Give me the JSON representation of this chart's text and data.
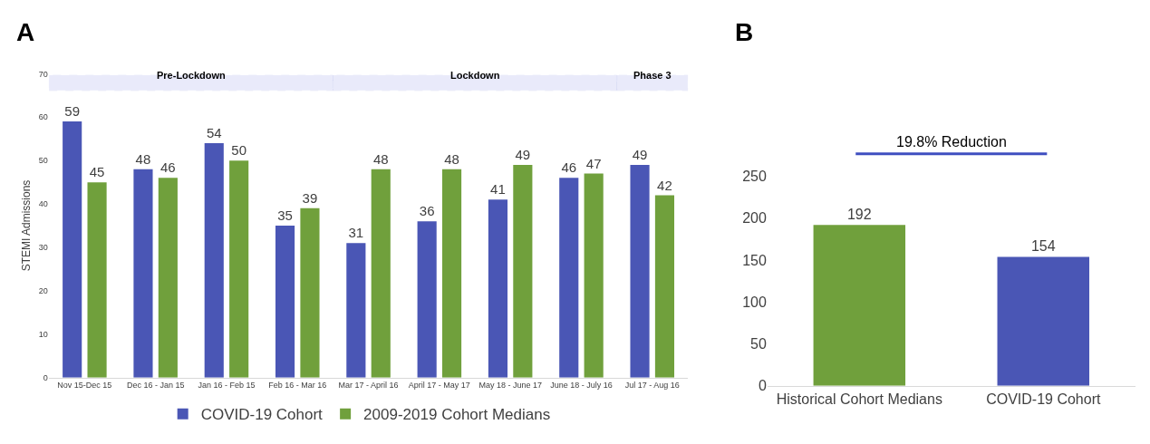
{
  "chart_data": [
    {
      "type": "bar",
      "title": "A",
      "ylabel": "STEMI Admissions",
      "categories": [
        "Nov 15-Dec 15",
        "Dec 16 - Jan 15",
        "Jan 16 - Feb 15",
        "Feb 16 - Mar 16",
        "Mar 17 - April 16",
        "April 17 - May 17",
        "May 18 - June 17",
        "June 18 - July 16",
        "Jul 17 - Aug 16"
      ],
      "series": [
        {
          "name": "COVID-19 Cohort",
          "color": "#4a56b5",
          "values": [
            59,
            48,
            54,
            35,
            31,
            36,
            41,
            46,
            49
          ]
        },
        {
          "name": "2009-2019 Cohort Medians",
          "color": "#70a03c",
          "values": [
            45,
            46,
            50,
            39,
            48,
            48,
            49,
            47,
            42
          ]
        }
      ],
      "ylim": [
        0,
        70
      ],
      "yticks": [
        0,
        10,
        20,
        30,
        40,
        50,
        60,
        70
      ],
      "bands": [
        {
          "axis": "x",
          "from": "Nov 15-Dec 15",
          "to": "Feb 16 - Mar 16",
          "label": "Pre-Lockdown",
          "color": "#4a56d0"
        },
        {
          "axis": "x",
          "from": "Mar 17 - April 16",
          "to": "June 18 - July 16",
          "label": "Lockdown",
          "color": "#4a56d0"
        },
        {
          "axis": "x",
          "from": "Jul 17 - Aug 16",
          "to": "Jul 17 - Aug 16",
          "label": "Phase 3",
          "color": "#4a56d0"
        }
      ],
      "data_labels": true,
      "legend": "bottom"
    },
    {
      "type": "bar",
      "title": "B",
      "categories": [
        "Historical Cohort Medians",
        "COVID-19 Cohort"
      ],
      "values": [
        192,
        154
      ],
      "colors": [
        "#70a03c",
        "#4a56b5"
      ],
      "ylim": [
        0,
        250
      ],
      "yticks": [
        0,
        50,
        100,
        150,
        200,
        250
      ],
      "annotations": [
        "19.8% Reduction"
      ],
      "data_labels": true
    }
  ]
}
